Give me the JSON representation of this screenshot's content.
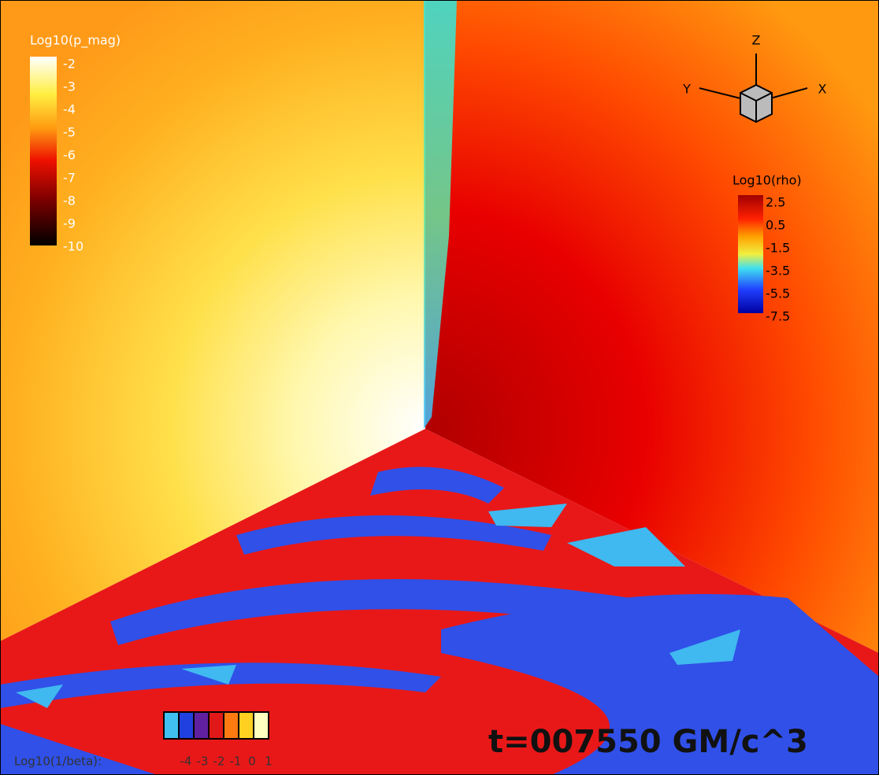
{
  "pmag_legend": {
    "title": "Log10(p_mag)",
    "labels": [
      -2,
      -3,
      -4,
      -5,
      -6,
      -7,
      -8,
      -9,
      -10
    ]
  },
  "rho_legend": {
    "title": "Log10(rho)",
    "labels": [
      2.5,
      0.5,
      -1.5,
      -3.5,
      -5.5,
      -7.5
    ]
  },
  "axes_triad": {
    "z": "Z",
    "y": "Y",
    "x": "X"
  },
  "beta_legend": {
    "title": "Log10(1/beta):",
    "labels": [
      -4,
      -3,
      -2,
      -1,
      0,
      1
    ]
  },
  "timestamp": "t=007550 GM/c^3"
}
